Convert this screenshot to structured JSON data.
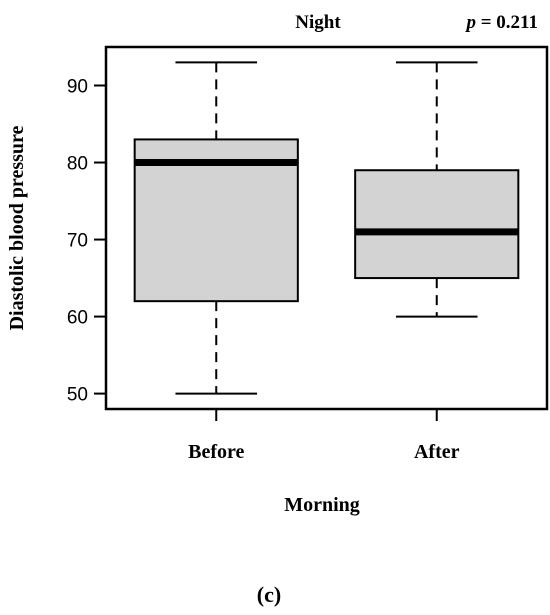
{
  "panel_label": "(c)",
  "chart_data": {
    "type": "boxplot",
    "title": "Night",
    "annotation": {
      "p_symbol": "p",
      "p_rest": " = 0.211"
    },
    "xlabel": "Morning",
    "ylabel": "Diastolic blood pressure",
    "ylim": [
      48,
      95
    ],
    "yticks": [
      50,
      60,
      70,
      80,
      90
    ],
    "grid": false,
    "categories": [
      "Before",
      "After"
    ],
    "boxes": [
      {
        "category": "Before",
        "min": 50,
        "q1": 62,
        "median": 80,
        "q3": 83,
        "max": 93
      },
      {
        "category": "After",
        "min": 60,
        "q1": 65,
        "median": 71,
        "q3": 79,
        "max": 93
      }
    ],
    "colors": {
      "box_fill": "#d3d3d3",
      "stroke": "#000000"
    }
  }
}
